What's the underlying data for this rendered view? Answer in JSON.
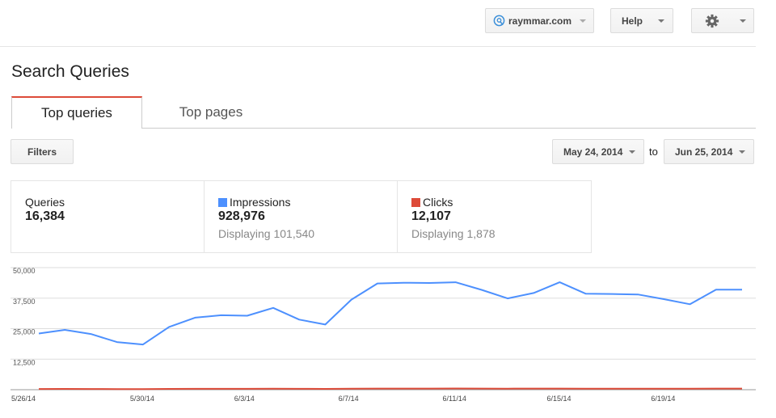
{
  "header": {
    "site_label": "raymmar.com",
    "help_label": "Help"
  },
  "page": {
    "title": "Search Queries",
    "tabs": [
      {
        "label": "Top queries",
        "active": true
      },
      {
        "label": "Top pages",
        "active": false
      }
    ]
  },
  "toolbar": {
    "filters_label": "Filters",
    "date_start": "May 24, 2014",
    "date_to_label": "to",
    "date_end": "Jun 25, 2014"
  },
  "metrics": [
    {
      "label": "Queries",
      "value": "16,384",
      "sub": "",
      "color": ""
    },
    {
      "label": "Impressions",
      "value": "928,976",
      "sub": "Displaying 101,540",
      "color": "#4d90fe"
    },
    {
      "label": "Clicks",
      "value": "12,107",
      "sub": "Displaying 1,878",
      "color": "#dd4b39"
    }
  ],
  "chart_data": {
    "type": "line",
    "x": [
      "5/26/14",
      "5/27/14",
      "5/28/14",
      "5/29/14",
      "5/30/14",
      "5/31/14",
      "6/1/14",
      "6/2/14",
      "6/3/14",
      "6/4/14",
      "6/5/14",
      "6/6/14",
      "6/7/14",
      "6/8/14",
      "6/9/14",
      "6/10/14",
      "6/11/14",
      "6/12/14",
      "6/13/14",
      "6/14/14",
      "6/15/14",
      "6/16/14",
      "6/17/14",
      "6/18/14",
      "6/19/14",
      "6/20/14",
      "6/21/14",
      "6/22/14"
    ],
    "x_tick_labels": [
      "5/26/14",
      "5/30/14",
      "6/3/14",
      "6/7/14",
      "6/11/14",
      "6/15/14",
      "6/19/14"
    ],
    "y_tick_labels": [
      "50,000",
      "37,500",
      "25,000",
      "12,500"
    ],
    "ylim": [
      0,
      50000
    ],
    "grid": true,
    "series": [
      {
        "name": "Impressions",
        "color": "#4d90fe",
        "values": [
          23000,
          24500,
          22800,
          19500,
          18500,
          25700,
          29500,
          30500,
          30300,
          33500,
          28700,
          26700,
          36900,
          43500,
          43800,
          43700,
          44000,
          40900,
          37400,
          39600,
          44000,
          39300,
          39200,
          39000,
          37100,
          35000,
          41000,
          41000
        ]
      },
      {
        "name": "Clicks",
        "color": "#dd4b39",
        "values": [
          300,
          320,
          300,
          270,
          260,
          330,
          360,
          370,
          370,
          400,
          350,
          330,
          430,
          480,
          480,
          480,
          490,
          460,
          420,
          450,
          480,
          440,
          440,
          440,
          420,
          400,
          460,
          460
        ]
      }
    ]
  }
}
